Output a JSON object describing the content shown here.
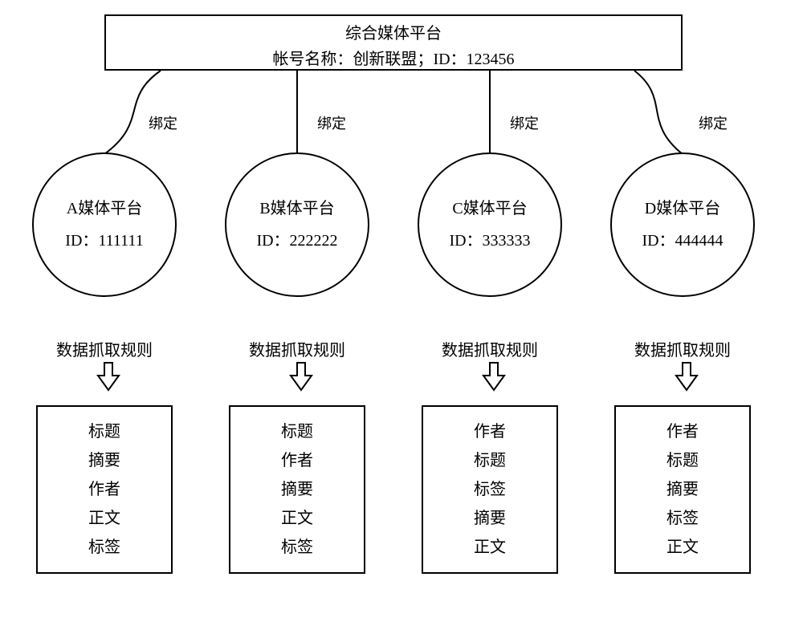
{
  "colors": {
    "stroke": "#000000",
    "bg": "#ffffff"
  },
  "top": {
    "title": "综合媒体平台",
    "accountLabel": "帐号名称：",
    "accountName": "创新联盟；",
    "idLabel": "ID：",
    "idValue": "123456"
  },
  "bindLabel": "绑定",
  "ruleLabel": "数据抓取规则",
  "platforms": [
    {
      "key": "a",
      "name": "A媒体平台",
      "idLabel": "ID：",
      "idValue": "111111",
      "fields": [
        "标题",
        "摘要",
        "作者",
        "正文",
        "标签"
      ],
      "circleX": 40,
      "bindX": 185,
      "connector": "curve-left"
    },
    {
      "key": "b",
      "name": "B媒体平台",
      "idLabel": "ID：",
      "idValue": "222222",
      "fields": [
        "标题",
        "作者",
        "摘要",
        "正文",
        "标签"
      ],
      "circleX": 280,
      "bindX": 395,
      "connector": "straight"
    },
    {
      "key": "c",
      "name": "C媒体平台",
      "idLabel": "ID：",
      "idValue": "333333",
      "fields": [
        "作者",
        "标题",
        "标签",
        "摘要",
        "正文"
      ],
      "circleX": 520,
      "bindX": 635,
      "connector": "straight"
    },
    {
      "key": "d",
      "name": "D媒体平台",
      "idLabel": "ID：",
      "idValue": "444444",
      "fields": [
        "作者",
        "标题",
        "摘要",
        "标签",
        "正文"
      ],
      "circleX": 760,
      "bindX": 870,
      "connector": "curve-right"
    }
  ],
  "layout": {
    "circleTop": 190,
    "circleSize": 180,
    "bindTop": 140,
    "ruleLabelTop": 420,
    "arrowTop": 450,
    "fieldBoxTop": 505,
    "fieldBoxWidth": 170,
    "fieldBoxHeight": 210,
    "topBoxBottomY": 88,
    "strokeWidth": 2
  }
}
